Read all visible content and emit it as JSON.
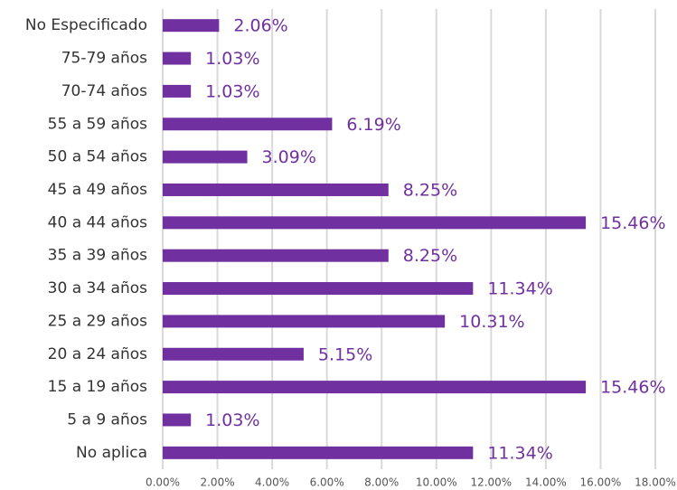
{
  "chart_data": {
    "type": "bar",
    "orientation": "horizontal",
    "color": "#7030a0",
    "grid": true,
    "categories": [
      "No Especificado",
      "75-79 años",
      "70-74 años",
      "55 a 59 años",
      "50 a 54 años",
      "45 a 49 años",
      "40 a 44 años",
      "35 a 39 años",
      "30 a 34 años",
      "25 a 29 años",
      "20 a 24 años",
      "15 a 19 años",
      "5 a 9 años",
      "No aplica"
    ],
    "values": [
      2.06,
      1.03,
      1.03,
      6.19,
      3.09,
      8.25,
      15.46,
      8.25,
      11.34,
      10.31,
      5.15,
      15.46,
      1.03,
      11.34
    ],
    "value_labels": [
      "2.06%",
      "1.03%",
      "1.03%",
      "6.19%",
      "3.09%",
      "8.25%",
      "15.46%",
      "8.25%",
      "11.34%",
      "10.31%",
      "5.15%",
      "15.46%",
      "1.03%",
      "11.34%"
    ],
    "xlim": [
      0,
      18
    ],
    "xticks": [
      {
        "value": 0,
        "label": "0.00%"
      },
      {
        "value": 2,
        "label": "2.00%"
      },
      {
        "value": 4,
        "label": "4.00%"
      },
      {
        "value": 6,
        "label": "6.00%"
      },
      {
        "value": 8,
        "label": "8.00%"
      },
      {
        "value": 10,
        "label": "10.00%"
      },
      {
        "value": 12,
        "label": "12.00%"
      },
      {
        "value": 14,
        "label": "14.00%"
      },
      {
        "value": 16,
        "label": "16.00%"
      },
      {
        "value": 18,
        "label": "18.00%"
      }
    ]
  }
}
